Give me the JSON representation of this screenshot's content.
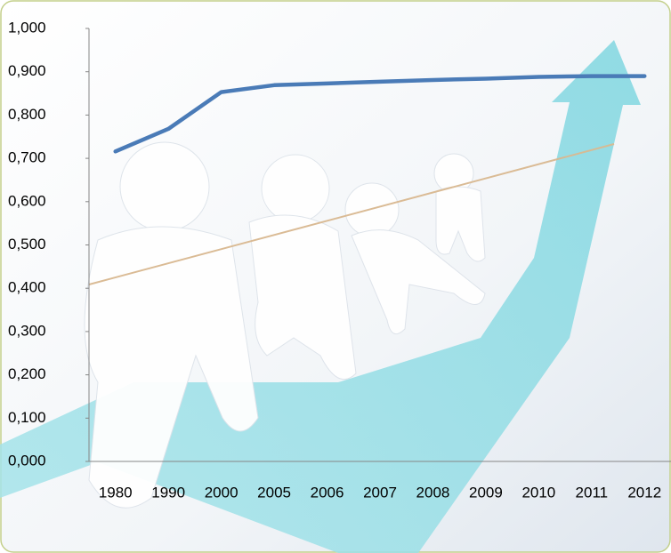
{
  "chart_data": {
    "type": "line",
    "categories": [
      "1980",
      "1990",
      "2000",
      "2005",
      "2006",
      "2007",
      "2008",
      "2009",
      "2010",
      "2011",
      "2012"
    ],
    "series": [
      {
        "color": "#4a7bb7",
        "values": [
          0.716,
          0.768,
          0.853,
          0.869,
          0.873,
          0.877,
          0.881,
          0.884,
          0.888,
          0.89,
          0.89
        ]
      }
    ],
    "ylim": [
      0,
      1
    ],
    "yticks": [
      {
        "value": 0,
        "label": "0,000"
      },
      {
        "value": 0.1,
        "label": "0,100"
      },
      {
        "value": 0.2,
        "label": "0,200"
      },
      {
        "value": 0.3,
        "label": "0,300"
      },
      {
        "value": 0.4,
        "label": "0,400"
      },
      {
        "value": 0.5,
        "label": "0,500"
      },
      {
        "value": 0.6,
        "label": "0,600"
      },
      {
        "value": 0.7,
        "label": "0,700"
      },
      {
        "value": 0.8,
        "label": "0,800"
      },
      {
        "value": 0.9,
        "label": "0,900"
      },
      {
        "value": 1,
        "label": "1,000"
      }
    ]
  }
}
